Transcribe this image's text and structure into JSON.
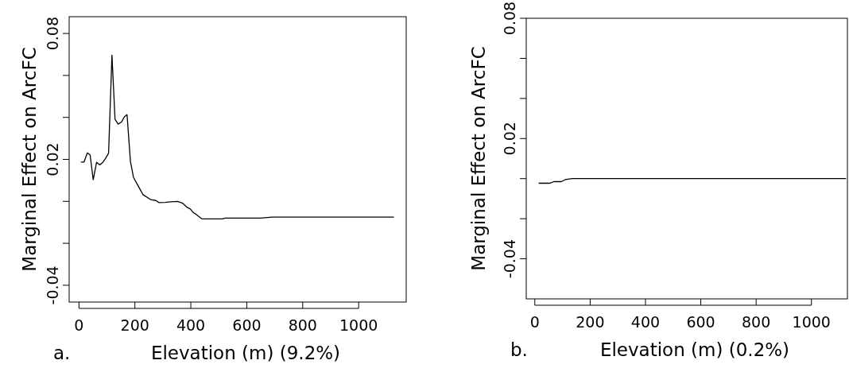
{
  "chart_data": [
    {
      "type": "line",
      "xlabel": "Elevation (m) (9.2%)",
      "ylabel": "Marginal Effect on ArcFC",
      "annotations": [
        "a."
      ],
      "xlim": [
        -35,
        1170
      ],
      "ylim": [
        -0.048,
        0.088
      ],
      "xticks": [
        0,
        200,
        400,
        600,
        800,
        1000
      ],
      "yticks": [
        {
          "value": -0.04,
          "label": "-0.04"
        },
        {
          "value": -0.02,
          "label": null
        },
        {
          "value": 0,
          "label": null
        },
        {
          "value": 0.02,
          "label": "0.02"
        },
        {
          "value": 0.04,
          "label": null
        },
        {
          "value": 0.06,
          "label": null
        },
        {
          "value": 0.08,
          "label": "0.08"
        }
      ],
      "grid": false,
      "series": [
        {
          "color": "#000000",
          "x": [
            7,
            18,
            30,
            40,
            51,
            63,
            74,
            85,
            95,
            106,
            118,
            129,
            140,
            152,
            163,
            172,
            184,
            195,
            207,
            229,
            257,
            275,
            286,
            309,
            320,
            352,
            371,
            386,
            398,
            409,
            419,
            440,
            513,
            523,
            650,
            690,
            1126
          ],
          "values": [
            0.0187,
            0.0187,
            0.0231,
            0.0221,
            0.0103,
            0.0186,
            0.0174,
            0.0185,
            0.0204,
            0.023,
            0.0697,
            0.0391,
            0.0368,
            0.0378,
            0.0404,
            0.0413,
            0.0191,
            0.0114,
            0.0085,
            0.0032,
            0.0008,
            0.0004,
            -0.0006,
            -0.0005,
            -0.0003,
            0,
            -0.0009,
            -0.0028,
            -0.0036,
            -0.0054,
            -0.0062,
            -0.0084,
            -0.0084,
            -0.008,
            -0.008,
            -0.0075,
            -0.0075
          ]
        }
      ]
    },
    {
      "type": "line",
      "xlabel": "Elevation (m) (0.2%)",
      "ylabel": "Marginal Effect on ArcFC",
      "annotations": [
        "b."
      ],
      "xlim": [
        -31,
        1130
      ],
      "ylim": [
        -0.06,
        0.08
      ],
      "xticks": [
        0,
        200,
        400,
        600,
        800,
        1000
      ],
      "yticks": [
        {
          "value": -0.04,
          "label": "-0.04"
        },
        {
          "value": -0.02,
          "label": null
        },
        {
          "value": 0,
          "label": null
        },
        {
          "value": 0.02,
          "label": "0.02"
        },
        {
          "value": 0.04,
          "label": null
        },
        {
          "value": 0.06,
          "label": null
        },
        {
          "value": 0.08,
          "label": "0.08"
        }
      ],
      "grid": false,
      "series": [
        {
          "color": "#000000",
          "x": [
            14,
            53,
            69,
            96,
            110,
            136,
            1125
          ],
          "values": [
            -0.0023,
            -0.0023,
            -0.0015,
            -0.0015,
            -0.0005,
            0,
            0
          ]
        }
      ]
    }
  ]
}
